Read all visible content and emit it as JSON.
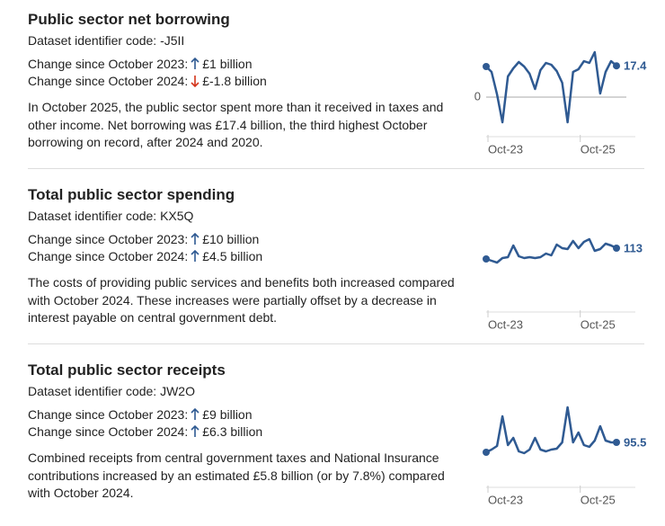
{
  "sections": [
    {
      "title": "Public sector net borrowing",
      "identifier": "Dataset identifier code: -J5II",
      "changes": [
        {
          "label": "Change since October 2023:",
          "direction": "up",
          "value": "£1 billion"
        },
        {
          "label": "Change since October 2024:",
          "direction": "down",
          "value": "£-1.8 billion"
        }
      ],
      "description": "In October 2025, the public sector spent more than it received in taxes and other income. Net borrowing was £17.4 billion, the third highest October borrowing on record, after 2024 and 2020.",
      "chart_data": {
        "type": "line",
        "color": "#2f5a92",
        "categories": [
          "Oct-23",
          null,
          null,
          null,
          null,
          null,
          null,
          null,
          null,
          null,
          null,
          null,
          null,
          null,
          null,
          null,
          null,
          "Oct-25",
          null,
          null,
          null,
          null,
          null,
          null,
          null
        ],
        "values": [
          17,
          14,
          1.5,
          -14,
          11.5,
          16,
          19.5,
          17,
          13,
          4.5,
          15,
          19,
          18,
          14.5,
          8,
          -14,
          14,
          15.5,
          20,
          19,
          25,
          2,
          14,
          20,
          17.4
        ],
        "ylim": [
          -16,
          26.5
        ],
        "yticks": [
          0
        ]
      }
    },
    {
      "title": "Total public sector spending",
      "identifier": "Dataset identifier code: KX5Q",
      "changes": [
        {
          "label": "Change since October 2023:",
          "direction": "up",
          "value": "£10 billion"
        },
        {
          "label": "Change since October 2024:",
          "direction": "up",
          "value": "£4.5 billion"
        }
      ],
      "description": "The costs of providing public services and benefits both increased compared with October 2024. These increases were partially offset by a decrease in interest payable on central government debt.",
      "chart_data": {
        "type": "line",
        "color": "#2f5a92",
        "categories": [
          "Oct-23",
          null,
          null,
          null,
          null,
          null,
          null,
          null,
          null,
          null,
          null,
          null,
          null,
          null,
          null,
          null,
          null,
          "Oct-25",
          null,
          null,
          null,
          null,
          null,
          null,
          null
        ],
        "values": [
          107,
          106,
          105,
          107.5,
          108,
          114.5,
          108.5,
          107.5,
          108,
          107.5,
          108,
          110,
          109,
          115,
          113,
          112.5,
          117,
          113,
          116.5,
          118,
          111.5,
          112.5,
          115.5,
          114.5,
          113
        ],
        "ylim": [
          83.5,
          126
        ]
      }
    },
    {
      "title": "Total public sector receipts",
      "identifier": "Dataset identifier code: JW2O",
      "changes": [
        {
          "label": "Change since October 2023:",
          "direction": "up",
          "value": "£9 billion"
        },
        {
          "label": "Change since October 2024:",
          "direction": "up",
          "value": "£6.3 billion"
        }
      ],
      "description": "Combined receipts from central government taxes and National Insurance contributions increased by an estimated £5.8 billion (or by 7.8%) compared with October 2024.",
      "chart_data": {
        "type": "line",
        "color": "#2f5a92",
        "categories": [
          "Oct-23",
          null,
          null,
          null,
          null,
          null,
          null,
          null,
          null,
          null,
          null,
          null,
          null,
          null,
          null,
          null,
          null,
          "Oct-25",
          null,
          null,
          null,
          null,
          null,
          null,
          null
        ],
        "values": [
          90,
          91.5,
          93.5,
          110,
          94,
          98,
          90.5,
          89.5,
          91.5,
          98,
          91.5,
          90.5,
          91.5,
          92,
          95.5,
          115,
          95.5,
          101,
          94,
          93,
          96.5,
          104.5,
          96.5,
          95.5,
          95.5
        ],
        "ylim": [
          76.5,
          119
        ]
      }
    }
  ]
}
